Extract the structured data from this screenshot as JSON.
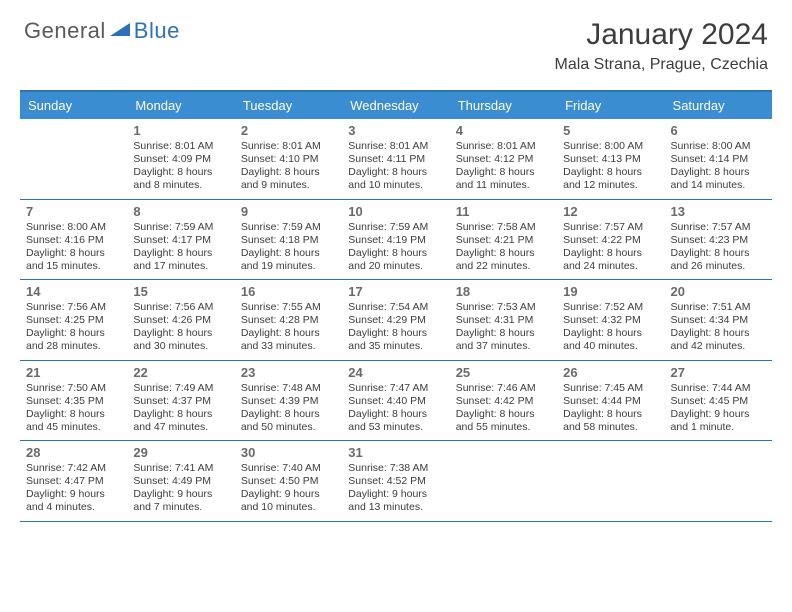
{
  "brand": {
    "part1": "General",
    "part2": "Blue"
  },
  "title": "January 2024",
  "location": "Mala Strana, Prague, Czechia",
  "colors": {
    "header_bar": "#3a8dd0",
    "accent_line": "#2d72b8",
    "text": "#3d3d3d",
    "daynum": "#6a6a6a",
    "header_text": "#ffffff",
    "background": "#ffffff"
  },
  "daynames": [
    "Sunday",
    "Monday",
    "Tuesday",
    "Wednesday",
    "Thursday",
    "Friday",
    "Saturday"
  ],
  "weeks": [
    [
      {
        "num": "",
        "sunrise": "",
        "sunset": "",
        "daylight": ""
      },
      {
        "num": "1",
        "sunrise": "Sunrise: 8:01 AM",
        "sunset": "Sunset: 4:09 PM",
        "daylight": "Daylight: 8 hours and 8 minutes."
      },
      {
        "num": "2",
        "sunrise": "Sunrise: 8:01 AM",
        "sunset": "Sunset: 4:10 PM",
        "daylight": "Daylight: 8 hours and 9 minutes."
      },
      {
        "num": "3",
        "sunrise": "Sunrise: 8:01 AM",
        "sunset": "Sunset: 4:11 PM",
        "daylight": "Daylight: 8 hours and 10 minutes."
      },
      {
        "num": "4",
        "sunrise": "Sunrise: 8:01 AM",
        "sunset": "Sunset: 4:12 PM",
        "daylight": "Daylight: 8 hours and 11 minutes."
      },
      {
        "num": "5",
        "sunrise": "Sunrise: 8:00 AM",
        "sunset": "Sunset: 4:13 PM",
        "daylight": "Daylight: 8 hours and 12 minutes."
      },
      {
        "num": "6",
        "sunrise": "Sunrise: 8:00 AM",
        "sunset": "Sunset: 4:14 PM",
        "daylight": "Daylight: 8 hours and 14 minutes."
      }
    ],
    [
      {
        "num": "7",
        "sunrise": "Sunrise: 8:00 AM",
        "sunset": "Sunset: 4:16 PM",
        "daylight": "Daylight: 8 hours and 15 minutes."
      },
      {
        "num": "8",
        "sunrise": "Sunrise: 7:59 AM",
        "sunset": "Sunset: 4:17 PM",
        "daylight": "Daylight: 8 hours and 17 minutes."
      },
      {
        "num": "9",
        "sunrise": "Sunrise: 7:59 AM",
        "sunset": "Sunset: 4:18 PM",
        "daylight": "Daylight: 8 hours and 19 minutes."
      },
      {
        "num": "10",
        "sunrise": "Sunrise: 7:59 AM",
        "sunset": "Sunset: 4:19 PM",
        "daylight": "Daylight: 8 hours and 20 minutes."
      },
      {
        "num": "11",
        "sunrise": "Sunrise: 7:58 AM",
        "sunset": "Sunset: 4:21 PM",
        "daylight": "Daylight: 8 hours and 22 minutes."
      },
      {
        "num": "12",
        "sunrise": "Sunrise: 7:57 AM",
        "sunset": "Sunset: 4:22 PM",
        "daylight": "Daylight: 8 hours and 24 minutes."
      },
      {
        "num": "13",
        "sunrise": "Sunrise: 7:57 AM",
        "sunset": "Sunset: 4:23 PM",
        "daylight": "Daylight: 8 hours and 26 minutes."
      }
    ],
    [
      {
        "num": "14",
        "sunrise": "Sunrise: 7:56 AM",
        "sunset": "Sunset: 4:25 PM",
        "daylight": "Daylight: 8 hours and 28 minutes."
      },
      {
        "num": "15",
        "sunrise": "Sunrise: 7:56 AM",
        "sunset": "Sunset: 4:26 PM",
        "daylight": "Daylight: 8 hours and 30 minutes."
      },
      {
        "num": "16",
        "sunrise": "Sunrise: 7:55 AM",
        "sunset": "Sunset: 4:28 PM",
        "daylight": "Daylight: 8 hours and 33 minutes."
      },
      {
        "num": "17",
        "sunrise": "Sunrise: 7:54 AM",
        "sunset": "Sunset: 4:29 PM",
        "daylight": "Daylight: 8 hours and 35 minutes."
      },
      {
        "num": "18",
        "sunrise": "Sunrise: 7:53 AM",
        "sunset": "Sunset: 4:31 PM",
        "daylight": "Daylight: 8 hours and 37 minutes."
      },
      {
        "num": "19",
        "sunrise": "Sunrise: 7:52 AM",
        "sunset": "Sunset: 4:32 PM",
        "daylight": "Daylight: 8 hours and 40 minutes."
      },
      {
        "num": "20",
        "sunrise": "Sunrise: 7:51 AM",
        "sunset": "Sunset: 4:34 PM",
        "daylight": "Daylight: 8 hours and 42 minutes."
      }
    ],
    [
      {
        "num": "21",
        "sunrise": "Sunrise: 7:50 AM",
        "sunset": "Sunset: 4:35 PM",
        "daylight": "Daylight: 8 hours and 45 minutes."
      },
      {
        "num": "22",
        "sunrise": "Sunrise: 7:49 AM",
        "sunset": "Sunset: 4:37 PM",
        "daylight": "Daylight: 8 hours and 47 minutes."
      },
      {
        "num": "23",
        "sunrise": "Sunrise: 7:48 AM",
        "sunset": "Sunset: 4:39 PM",
        "daylight": "Daylight: 8 hours and 50 minutes."
      },
      {
        "num": "24",
        "sunrise": "Sunrise: 7:47 AM",
        "sunset": "Sunset: 4:40 PM",
        "daylight": "Daylight: 8 hours and 53 minutes."
      },
      {
        "num": "25",
        "sunrise": "Sunrise: 7:46 AM",
        "sunset": "Sunset: 4:42 PM",
        "daylight": "Daylight: 8 hours and 55 minutes."
      },
      {
        "num": "26",
        "sunrise": "Sunrise: 7:45 AM",
        "sunset": "Sunset: 4:44 PM",
        "daylight": "Daylight: 8 hours and 58 minutes."
      },
      {
        "num": "27",
        "sunrise": "Sunrise: 7:44 AM",
        "sunset": "Sunset: 4:45 PM",
        "daylight": "Daylight: 9 hours and 1 minute."
      }
    ],
    [
      {
        "num": "28",
        "sunrise": "Sunrise: 7:42 AM",
        "sunset": "Sunset: 4:47 PM",
        "daylight": "Daylight: 9 hours and 4 minutes."
      },
      {
        "num": "29",
        "sunrise": "Sunrise: 7:41 AM",
        "sunset": "Sunset: 4:49 PM",
        "daylight": "Daylight: 9 hours and 7 minutes."
      },
      {
        "num": "30",
        "sunrise": "Sunrise: 7:40 AM",
        "sunset": "Sunset: 4:50 PM",
        "daylight": "Daylight: 9 hours and 10 minutes."
      },
      {
        "num": "31",
        "sunrise": "Sunrise: 7:38 AM",
        "sunset": "Sunset: 4:52 PM",
        "daylight": "Daylight: 9 hours and 13 minutes."
      },
      {
        "num": "",
        "sunrise": "",
        "sunset": "",
        "daylight": ""
      },
      {
        "num": "",
        "sunrise": "",
        "sunset": "",
        "daylight": ""
      },
      {
        "num": "",
        "sunrise": "",
        "sunset": "",
        "daylight": ""
      }
    ]
  ]
}
